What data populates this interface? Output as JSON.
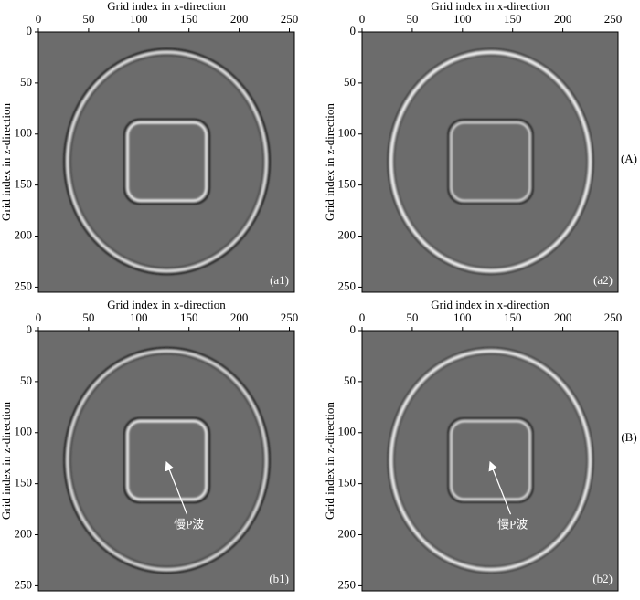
{
  "chart_data": [
    {
      "type": "image",
      "panel_label": "(a1)",
      "xlabel": "Grid index in x-direction",
      "ylabel": "Grid index in z-direction",
      "xlim": [
        0,
        255
      ],
      "ylim": [
        255,
        0
      ],
      "xticks": [
        0,
        50,
        100,
        150,
        200,
        250
      ],
      "yticks": [
        0,
        50,
        100,
        150,
        200,
        250
      ]
    },
    {
      "type": "image",
      "panel_label": "(a2)",
      "xlabel": "Grid index in x-direction",
      "ylabel": "Grid index in z-direction",
      "xlim": [
        0,
        255
      ],
      "ylim": [
        255,
        0
      ],
      "xticks": [
        0,
        50,
        100,
        150,
        200,
        250
      ],
      "yticks": [
        0,
        50,
        100,
        150,
        200,
        250
      ]
    },
    {
      "type": "image",
      "panel_label": "(b1)",
      "xlabel": "Grid index in x-direction",
      "ylabel": "Grid index in z-direction",
      "xlim": [
        0,
        255
      ],
      "ylim": [
        255,
        0
      ],
      "xticks": [
        0,
        50,
        100,
        150,
        200,
        250
      ],
      "yticks": [
        0,
        50,
        100,
        150,
        200,
        250
      ],
      "annotation": "慢P波"
    },
    {
      "type": "image",
      "panel_label": "(b2)",
      "xlabel": "Grid index in x-direction",
      "ylabel": "Grid index in z-direction",
      "xlim": [
        0,
        255
      ],
      "ylim": [
        255,
        0
      ],
      "xticks": [
        0,
        50,
        100,
        150,
        200,
        250
      ],
      "yticks": [
        0,
        50,
        100,
        150,
        200,
        250
      ],
      "annotation": "慢P波"
    }
  ],
  "row_labels": [
    "(A)",
    "(B)"
  ]
}
